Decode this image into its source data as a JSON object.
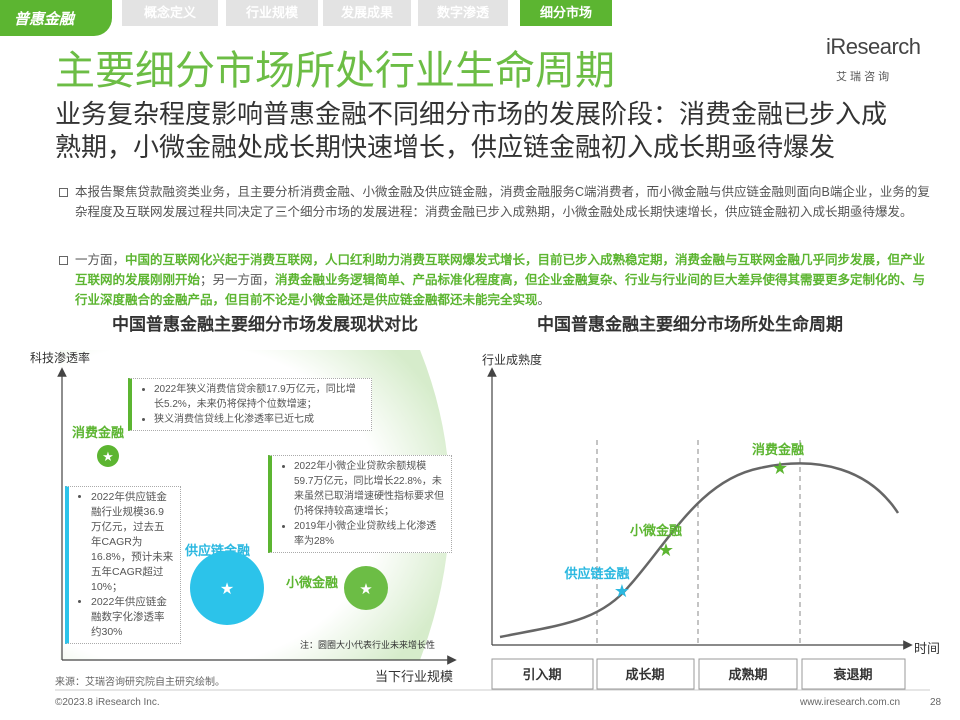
{
  "header": {
    "tag": "普惠金融",
    "tabs": [
      "概念定义",
      "行业规模",
      "发展成果",
      "数字渗透",
      "细分市场"
    ]
  },
  "logo": {
    "name": "iResearch",
    "subtitle": "艾 瑞 咨 询"
  },
  "title": "主要细分市场所处行业生命周期",
  "subtitle": [
    "业务复杂程度影响普惠金融不同细分市场的发展阶段：消费金融已步入成",
    "熟期，小微金融处成长期快速增长，供应链金融初入成长期亟待爆发"
  ],
  "bullets": [
    [
      {
        "text": "本报告聚焦贷款融资类业务，且主要分析消费金融、小微金融及供应链金融，消费金融服务C端消费者，而小微金融与供应链金融则面向B端企业，业务的复杂程度及互联网发展过程共同决定了三个细分市场的发展进程：消费金融已步入成熟期，小微金融处成长期快速增长，供应链金融初入成长期亟待爆发。",
        "highlight": false
      }
    ],
    [
      {
        "text": "一方面，",
        "highlight": false
      },
      {
        "text": "中国的互联网化兴起于消费互联网，人口红利助力消费互联网爆发式增长，目前已步入成熟稳定期，消费金融与互联网金融几乎同步发展，但产业互联网的发展刚刚开始",
        "highlight": true
      },
      {
        "text": "；另一方面，",
        "highlight": false
      },
      {
        "text": "消费金融业务逻辑简单、产品标准化程度高，但企业金融复杂、行业与行业间的巨大差异使得其需要更多定制化的、与行业深度融合的金融产品，但目前不论是小微金融还是供应链金融都还未能完全实现",
        "highlight": true
      },
      {
        "text": "。",
        "highlight": false
      }
    ]
  ],
  "left_chart": {
    "title": "中国普惠金融主要细分市场发展现状对比",
    "y_label": "科技渗透率",
    "x_label": "当下行业规模",
    "markets": [
      {
        "name": "消费金融",
        "notes": [
          "2022年狭义消费信贷余额17.9万亿元，同比增长5.2%，未来仍将保持个位数增速；",
          "狭义消费信贷线上化渗透率已近七成"
        ]
      },
      {
        "name": "供应链金融",
        "notes": [
          "2022年供应链金融行业规模36.9万亿元，过去五年CAGR为16.8%，预计未来五年CAGR超过10%；",
          "2022年供应链金融数字化渗透率约30%"
        ]
      },
      {
        "name": "小微金融",
        "notes": [
          "2022年小微企业贷款余额规模59.7万亿元，同比增长22.8%，未来虽然已取消增速硬性指标要求但仍将保持较高速增长；",
          "2019年小微企业贷款线上化渗透率为28%"
        ]
      }
    ],
    "note": "注：圆圈大小代表行业未来增长性"
  },
  "right_chart": {
    "title": "中国普惠金融主要细分市场所处生命周期",
    "y_label": "行业成熟度",
    "x_label": "时间",
    "stages": [
      "引入期",
      "成长期",
      "成熟期",
      "衰退期"
    ],
    "points": [
      "消费金融",
      "小微金融",
      "供应链金融"
    ]
  },
  "footer": {
    "source": "来源：艾瑞咨询研究院自主研究绘制。",
    "copyright": "©2023.8 iResearch Inc.",
    "url": "www.iresearch.com.cn",
    "page": "28"
  }
}
